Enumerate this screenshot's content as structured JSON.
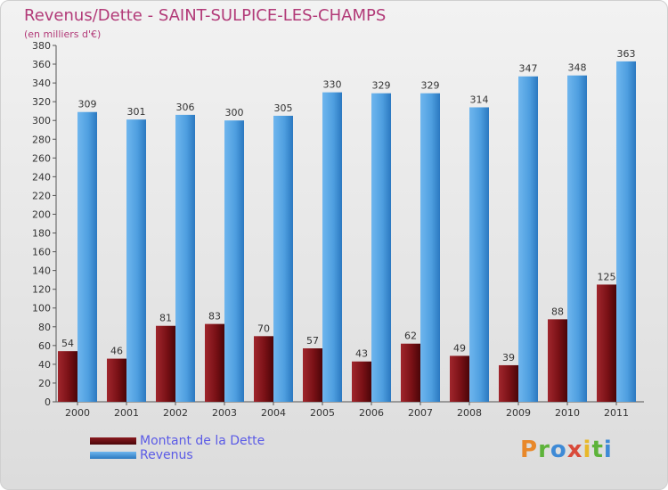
{
  "header": {
    "title": "Revenus/Dette - SAINT-SULPICE-LES-CHAMPS",
    "subtitle": "(en milliers d'€)"
  },
  "colors": {
    "title": "#b23a78",
    "debt": "#6b0d10",
    "revenue": "#4f9fe0",
    "legend_text": "#5b5be6"
  },
  "chart_data": {
    "type": "bar",
    "title": "Revenus/Dette - SAINT-SULPICE-LES-CHAMPS",
    "ylabel": "(en milliers d'€)",
    "categories": [
      "2000",
      "2001",
      "2002",
      "2003",
      "2004",
      "2005",
      "2006",
      "2007",
      "2008",
      "2009",
      "2010",
      "2011"
    ],
    "ylim": [
      0,
      380
    ],
    "ytick_step": 20,
    "grid": false,
    "legend": "bottom-left",
    "series": [
      {
        "name": "Montant de la Dette",
        "values": [
          54,
          46,
          81,
          83,
          70,
          57,
          43,
          62,
          49,
          39,
          88,
          125
        ]
      },
      {
        "name": "Revenus",
        "values": [
          309,
          301,
          306,
          300,
          305,
          330,
          329,
          329,
          314,
          347,
          348,
          363
        ]
      }
    ]
  },
  "legend": {
    "items": [
      {
        "label": "Montant de la Dette",
        "color": "#6b0d10"
      },
      {
        "label": "Revenus",
        "color": "#4f9fe0"
      }
    ]
  },
  "logo": {
    "text": "Proxiti",
    "letters": [
      "P",
      "r",
      "o",
      "x",
      "i",
      "t",
      "i"
    ],
    "letter_colors": [
      "#e8882a",
      "#5db33a",
      "#3e8ad6",
      "#d94a3a",
      "#e8b82a",
      "#5db33a",
      "#3e8ad6"
    ]
  }
}
